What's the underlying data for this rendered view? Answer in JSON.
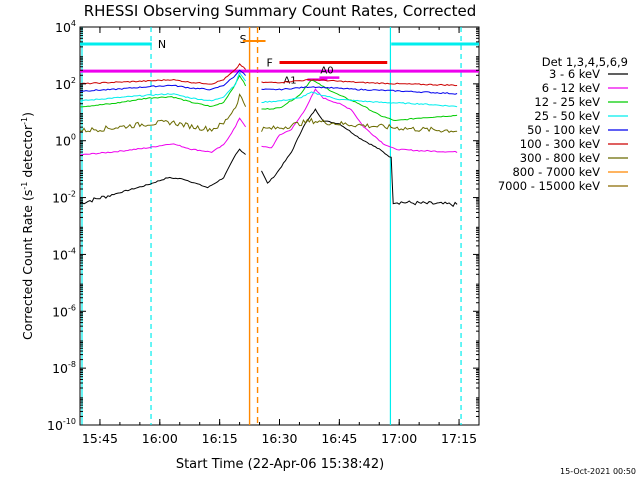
{
  "chart_data": {
    "type": "line",
    "title": "RHESSI Observing Summary Count Rates, Corrected",
    "xlabel": "Start Time (22-Apr-06 15:38:42)",
    "ylabel_main": "Corrected Count Rate (s",
    "ylabel_sup1": "-1",
    "ylabel_mid": " detector",
    "ylabel_sup2": "-1",
    "ylabel_end": ")",
    "yscale": "log",
    "ylim_exp": [
      -10,
      4
    ],
    "xlim_min": [
      940,
      1040
    ],
    "xticks": [
      {
        "min": 945,
        "label": "15:45"
      },
      {
        "min": 960,
        "label": "16:00"
      },
      {
        "min": 975,
        "label": "16:15"
      },
      {
        "min": 990,
        "label": "16:30"
      },
      {
        "min": 1005,
        "label": "16:45"
      },
      {
        "min": 1020,
        "label": "17:00"
      },
      {
        "min": 1035,
        "label": "17:15"
      }
    ],
    "yticks": [
      {
        "exp": 4,
        "base": "10",
        "sup": "4"
      },
      {
        "exp": 2,
        "base": "10",
        "sup": "2"
      },
      {
        "exp": 0,
        "base": "10",
        "sup": "0"
      },
      {
        "exp": -2,
        "base": "10",
        "sup": "-2"
      },
      {
        "exp": -4,
        "base": "10",
        "sup": "-4"
      },
      {
        "exp": -6,
        "base": "10",
        "sup": "-6"
      },
      {
        "exp": -8,
        "base": "10",
        "sup": "-8"
      },
      {
        "exp": -10,
        "base": "10",
        "sup": "-10"
      }
    ],
    "legend_title": "Det 1,3,4,5,6,9",
    "series": [
      {
        "name": "3 - 6 keV",
        "color": "#000000",
        "shape": [
          {
            "t": 940,
            "e": -2.2
          },
          {
            "t": 948,
            "e": -1.9
          },
          {
            "t": 957,
            "e": -1.55
          },
          {
            "t": 962,
            "e": -1.3
          },
          {
            "t": 966,
            "e": -1.35
          },
          {
            "t": 972,
            "e": -1.65
          },
          {
            "t": 976,
            "e": -1.3
          },
          {
            "t": 979,
            "e": -0.5
          },
          {
            "t": 980,
            "e": -0.3
          },
          {
            "t": 985,
            "e": -0.9
          },
          {
            "t": 987,
            "e": -1.5
          },
          {
            "t": 989,
            "e": -1.2
          },
          {
            "t": 991,
            "e": -0.8
          },
          {
            "t": 993,
            "e": -0.4
          },
          {
            "t": 996,
            "e": 0.5
          },
          {
            "t": 999,
            "e": 1.1
          },
          {
            "t": 1001,
            "e": 0.7
          },
          {
            "t": 1005,
            "e": 0.6
          },
          {
            "t": 1010,
            "e": 0.1
          },
          {
            "t": 1015,
            "e": -0.3
          },
          {
            "t": 1018,
            "e": -0.6
          },
          {
            "t": 1018.5,
            "e": -2.15
          },
          {
            "t": 1025,
            "e": -2.2
          },
          {
            "t": 1035,
            "e": -2.25
          }
        ]
      },
      {
        "name": "6 - 12 keV",
        "color": "#ee00ee",
        "shape": [
          {
            "t": 940,
            "e": -0.5
          },
          {
            "t": 948,
            "e": -0.4
          },
          {
            "t": 957,
            "e": -0.25
          },
          {
            "t": 963,
            "e": -0.1
          },
          {
            "t": 968,
            "e": -0.3
          },
          {
            "t": 973,
            "e": -0.4
          },
          {
            "t": 976,
            "e": -0.15
          },
          {
            "t": 979,
            "e": 0.5
          },
          {
            "t": 980,
            "e": 0.8
          },
          {
            "t": 985,
            "e": -0.2
          },
          {
            "t": 988,
            "e": -0.25
          },
          {
            "t": 990,
            "e": 0.2
          },
          {
            "t": 993,
            "e": 0.4
          },
          {
            "t": 996,
            "e": 1.0
          },
          {
            "t": 999,
            "e": 1.8
          },
          {
            "t": 1001,
            "e": 1.5
          },
          {
            "t": 1005,
            "e": 1.3
          },
          {
            "t": 1008,
            "e": 1.1
          },
          {
            "t": 1011,
            "e": 0.5
          },
          {
            "t": 1016,
            "e": -0.1
          },
          {
            "t": 1019,
            "e": -0.3
          },
          {
            "t": 1025,
            "e": -0.35
          },
          {
            "t": 1035,
            "e": -0.4
          }
        ]
      },
      {
        "name": "12 - 25 keV",
        "color": "#00cc00",
        "shape": [
          {
            "t": 940,
            "e": 1.2
          },
          {
            "t": 948,
            "e": 1.3
          },
          {
            "t": 957,
            "e": 1.5
          },
          {
            "t": 963,
            "e": 1.55
          },
          {
            "t": 968,
            "e": 1.35
          },
          {
            "t": 973,
            "e": 1.2
          },
          {
            "t": 976,
            "e": 1.35
          },
          {
            "t": 979,
            "e": 2.0
          },
          {
            "t": 980,
            "e": 2.3
          },
          {
            "t": 985,
            "e": 1.1
          },
          {
            "t": 990,
            "e": 1.15
          },
          {
            "t": 995,
            "e": 1.6
          },
          {
            "t": 998,
            "e": 2.15
          },
          {
            "t": 1001,
            "e": 1.9
          },
          {
            "t": 1005,
            "e": 1.6
          },
          {
            "t": 1010,
            "e": 1.3
          },
          {
            "t": 1015,
            "e": 0.9
          },
          {
            "t": 1019,
            "e": 0.7
          },
          {
            "t": 1025,
            "e": 0.8
          },
          {
            "t": 1035,
            "e": 0.9
          }
        ]
      },
      {
        "name": "25 - 50 keV",
        "color": "#00eeee",
        "shape": [
          {
            "t": 940,
            "e": 1.4
          },
          {
            "t": 948,
            "e": 1.5
          },
          {
            "t": 957,
            "e": 1.6
          },
          {
            "t": 963,
            "e": 1.65
          },
          {
            "t": 968,
            "e": 1.5
          },
          {
            "t": 973,
            "e": 1.4
          },
          {
            "t": 976,
            "e": 1.55
          },
          {
            "t": 979,
            "e": 2.0
          },
          {
            "t": 980,
            "e": 2.4
          },
          {
            "t": 985,
            "e": 1.35
          },
          {
            "t": 990,
            "e": 1.4
          },
          {
            "t": 995,
            "e": 1.5
          },
          {
            "t": 998,
            "e": 1.7
          },
          {
            "t": 1005,
            "e": 1.45
          },
          {
            "t": 1015,
            "e": 1.35
          },
          {
            "t": 1025,
            "e": 1.3
          },
          {
            "t": 1035,
            "e": 1.2
          }
        ]
      },
      {
        "name": "50 - 100 keV",
        "color": "#0000ee",
        "shape": [
          {
            "t": 940,
            "e": 1.75
          },
          {
            "t": 948,
            "e": 1.8
          },
          {
            "t": 957,
            "e": 1.9
          },
          {
            "t": 963,
            "e": 1.95
          },
          {
            "t": 968,
            "e": 1.85
          },
          {
            "t": 973,
            "e": 1.8
          },
          {
            "t": 976,
            "e": 1.95
          },
          {
            "t": 979,
            "e": 2.3
          },
          {
            "t": 980,
            "e": 2.5
          },
          {
            "t": 985,
            "e": 1.8
          },
          {
            "t": 990,
            "e": 1.8
          },
          {
            "t": 998,
            "e": 1.9
          },
          {
            "t": 1010,
            "e": 1.8
          },
          {
            "t": 1020,
            "e": 1.75
          },
          {
            "t": 1035,
            "e": 1.65
          }
        ]
      },
      {
        "name": "100 - 300 keV",
        "color": "#cc0000",
        "shape": [
          {
            "t": 940,
            "e": 2.0
          },
          {
            "t": 948,
            "e": 2.05
          },
          {
            "t": 957,
            "e": 2.1
          },
          {
            "t": 963,
            "e": 2.15
          },
          {
            "t": 968,
            "e": 2.05
          },
          {
            "t": 973,
            "e": 2.0
          },
          {
            "t": 976,
            "e": 2.15
          },
          {
            "t": 979,
            "e": 2.5
          },
          {
            "t": 980,
            "e": 2.7
          },
          {
            "t": 985,
            "e": 2.05
          },
          {
            "t": 990,
            "e": 2.05
          },
          {
            "t": 998,
            "e": 2.15
          },
          {
            "t": 1010,
            "e": 2.05
          },
          {
            "t": 1020,
            "e": 2.0
          },
          {
            "t": 1035,
            "e": 1.95
          }
        ]
      },
      {
        "name": "300 - 800 keV",
        "color": "#6b6b00",
        "shape": [
          {
            "t": 940,
            "e": 0.35
          },
          {
            "t": 948,
            "e": 0.45
          },
          {
            "t": 957,
            "e": 0.6
          },
          {
            "t": 963,
            "e": 0.65
          },
          {
            "t": 968,
            "e": 0.5
          },
          {
            "t": 973,
            "e": 0.4
          },
          {
            "t": 976,
            "e": 0.6
          },
          {
            "t": 979,
            "e": 1.2
          },
          {
            "t": 980,
            "e": 1.6
          },
          {
            "t": 985,
            "e": 0.4
          },
          {
            "t": 990,
            "e": 0.45
          },
          {
            "t": 998,
            "e": 0.7
          },
          {
            "t": 1005,
            "e": 0.6
          },
          {
            "t": 1015,
            "e": 0.5
          },
          {
            "t": 1025,
            "e": 0.4
          },
          {
            "t": 1035,
            "e": 0.35
          }
        ]
      },
      {
        "name": "800 - 7000 keV",
        "color": "#ff8800",
        "shape": []
      },
      {
        "name": "7000 - 15000 keV",
        "color": "#8b6b00",
        "shape": []
      }
    ],
    "markers": {
      "night_label": "N",
      "saa_label": "S",
      "flare_label": "F",
      "att1_label": "A1",
      "att0_label": "A0",
      "night_bars": [
        [
          940,
          958
        ],
        [
          1018,
          1040
        ]
      ],
      "flare_bar": [
        990,
        1017
      ],
      "saa_lines": [
        982.5,
        984.5
      ],
      "night_lines": [
        940.5,
        1017.8
      ],
      "night_dash_lines": [
        957.8,
        1035.5
      ],
      "att1_bar": [
        997,
        1002
      ],
      "att0_bar": [
        1000,
        1005
      ]
    },
    "colors": {
      "night": "#00eeee",
      "saa": "#ff8800",
      "flare": "#ee0000",
      "attenuator": "#ee00ee",
      "magenta_line": "#ee00ee"
    },
    "timestamp": "15-Oct-2021 00:50"
  }
}
